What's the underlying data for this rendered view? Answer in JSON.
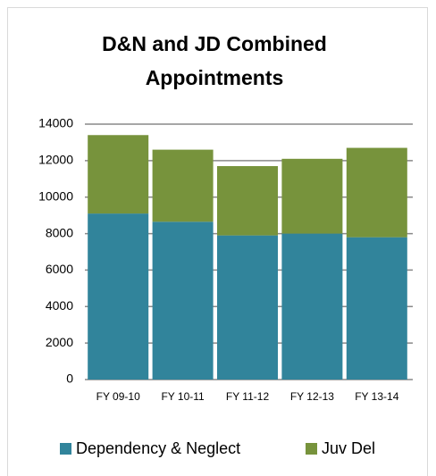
{
  "chart_data": {
    "type": "stacked-bar",
    "title": "D&N and JD Combined Appointments",
    "categories": [
      "FY 09-10",
      "FY 10-11",
      "FY 11-12",
      "FY 12-13",
      "FY 13-14"
    ],
    "series": [
      {
        "name": "Dependency & Neglect",
        "color": "#31849b",
        "values": [
          9100,
          8650,
          7900,
          8000,
          7800
        ]
      },
      {
        "name": "Juv Del",
        "color": "#77933c",
        "values": [
          4300,
          3950,
          3800,
          4100,
          4900
        ]
      }
    ],
    "ylim": [
      0,
      14000
    ],
    "yticks": [
      0,
      2000,
      4000,
      6000,
      8000,
      10000,
      12000,
      14000
    ],
    "grid": true,
    "legend": "bottom"
  }
}
